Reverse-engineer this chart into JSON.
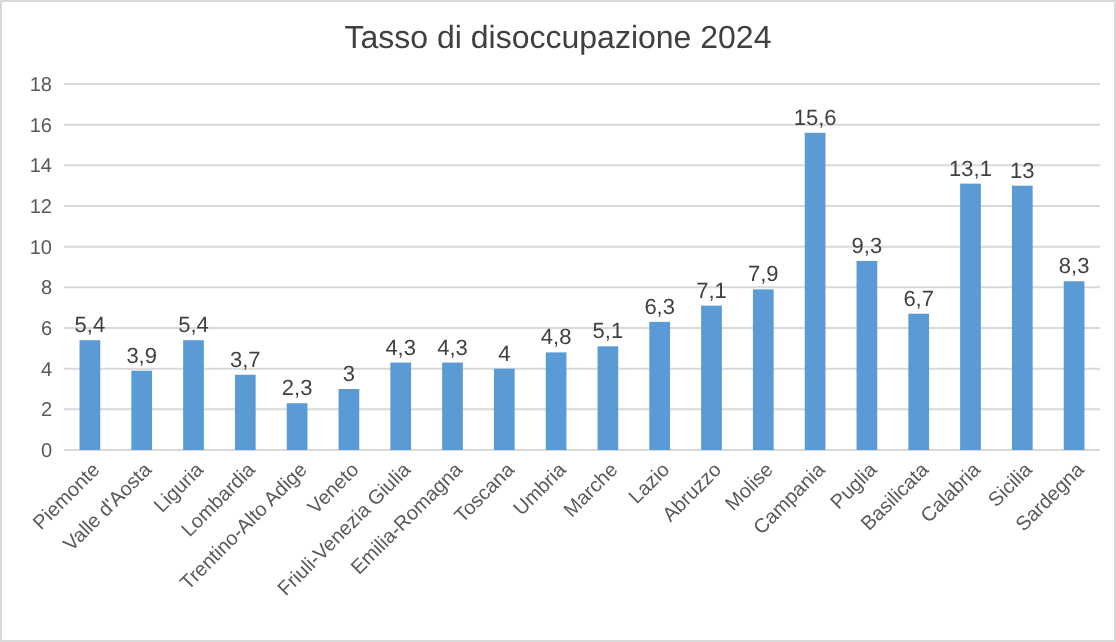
{
  "chart_data": {
    "type": "bar",
    "title": "Tasso di disoccupazione 2024",
    "categories": [
      "Piemonte",
      "Valle d'Aosta",
      "Liguria",
      "Lombardia",
      "Trentino-Alto Adige",
      "Veneto",
      "Friuli-Venezia Giulia",
      "Emilia-Romagna",
      "Toscana",
      "Umbria",
      "Marche",
      "Lazio",
      "Abruzzo",
      "Molise",
      "Campania",
      "Puglia",
      "Basilicata",
      "Calabria",
      "Sicilia",
      "Sardegna"
    ],
    "values": [
      5.4,
      3.9,
      5.4,
      3.7,
      2.3,
      3,
      4.3,
      4.3,
      4,
      4.8,
      5.1,
      6.3,
      7.1,
      7.9,
      15.6,
      9.3,
      6.7,
      13.1,
      13,
      8.3
    ],
    "value_labels": [
      "5,4",
      "3,9",
      "5,4",
      "3,7",
      "2,3",
      "3",
      "4,3",
      "4,3",
      "4",
      "4,8",
      "5,1",
      "6,3",
      "7,1",
      "7,9",
      "15,6",
      "9,3",
      "6,7",
      "13,1",
      "13",
      "8,3"
    ],
    "color": "#5b9bd5",
    "ylim": [
      0,
      18
    ],
    "yticks": [
      0,
      2,
      4,
      6,
      8,
      10,
      12,
      14,
      16,
      18
    ],
    "grid": "y"
  }
}
